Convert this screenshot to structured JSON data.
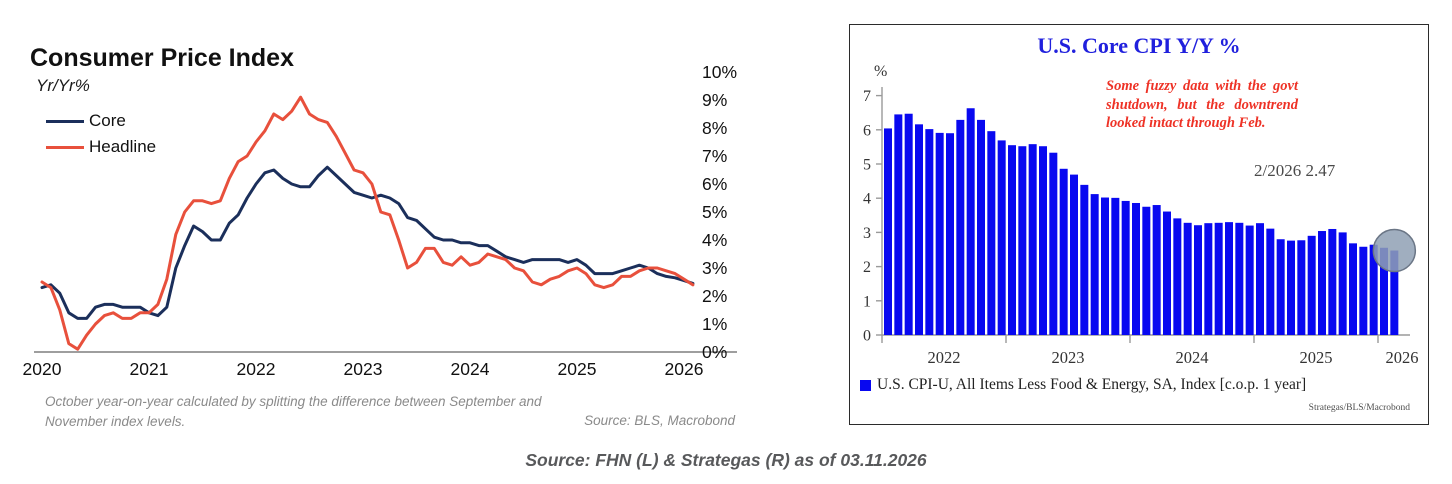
{
  "page": {
    "caption": "Source: FHN (L) & Strategas (R) as of 03.11.2026"
  },
  "left_chart": {
    "title": "Consumer Price Index",
    "subtitle": "Yr/Yr%",
    "legend": [
      {
        "label": "Core",
        "color": "#1b2f5b"
      },
      {
        "label": "Headline",
        "color": "#e8503c"
      }
    ],
    "footnote": "October year-on-year calculated by splitting the difference between September and November index levels.",
    "source": "Source: BLS, Macrobond"
  },
  "right_chart": {
    "title": "U.S. Core CPI Y/Y %",
    "title_color": "#2020dd",
    "unit_label": "%",
    "annotation": "Some fuzzy data with the govt shutdown, but the downtrend looked intact through Feb.",
    "annotation_color": "#ee3226",
    "point_label": "2/2026 2.47",
    "legend": "U.S. CPI-U, All Items Less Food & Energy, SA, Index [c.o.p. 1 year]",
    "credit": "Strategas/BLS/Macrobond"
  },
  "chart_data": [
    {
      "type": "line",
      "title": "Consumer Price Index",
      "ylabel": "Yr/Yr%",
      "x_start": "2020-01",
      "x_end": "2026-02",
      "x_tick_labels": [
        "2020",
        "2021",
        "2022",
        "2023",
        "2024",
        "2025",
        "2026"
      ],
      "y_tick_labels": [
        "0%",
        "1%",
        "2%",
        "3%",
        "4%",
        "5%",
        "6%",
        "7%",
        "8%",
        "9%",
        "10%"
      ],
      "ylim": [
        0,
        10
      ],
      "grid": false,
      "legend_position": "top-left",
      "series": [
        {
          "name": "Core",
          "color": "#1b2f5b",
          "values": [
            2.3,
            2.4,
            2.1,
            1.4,
            1.2,
            1.2,
            1.6,
            1.7,
            1.7,
            1.6,
            1.6,
            1.6,
            1.4,
            1.3,
            1.6,
            3.0,
            3.8,
            4.5,
            4.3,
            4.0,
            4.0,
            4.6,
            4.9,
            5.5,
            6.0,
            6.4,
            6.5,
            6.2,
            6.0,
            5.9,
            5.9,
            6.3,
            6.6,
            6.3,
            6.0,
            5.7,
            5.6,
            5.5,
            5.6,
            5.5,
            5.3,
            4.8,
            4.7,
            4.4,
            4.1,
            4.0,
            4.0,
            3.9,
            3.9,
            3.8,
            3.8,
            3.6,
            3.4,
            3.3,
            3.2,
            3.3,
            3.3,
            3.3,
            3.3,
            3.2,
            3.3,
            3.1,
            2.8,
            2.8,
            2.8,
            2.9,
            3.0,
            3.1,
            3.0,
            2.8,
            2.7,
            2.65,
            2.55,
            2.45
          ]
        },
        {
          "name": "Headline",
          "color": "#e8503c",
          "values": [
            2.5,
            2.3,
            1.5,
            0.3,
            0.1,
            0.6,
            1.0,
            1.3,
            1.4,
            1.2,
            1.2,
            1.4,
            1.4,
            1.7,
            2.6,
            4.2,
            5.0,
            5.4,
            5.4,
            5.3,
            5.4,
            6.2,
            6.8,
            7.0,
            7.5,
            7.9,
            8.5,
            8.3,
            8.6,
            9.1,
            8.5,
            8.3,
            8.2,
            7.7,
            7.1,
            6.5,
            6.4,
            6.0,
            5.0,
            4.9,
            4.0,
            3.0,
            3.2,
            3.7,
            3.7,
            3.2,
            3.1,
            3.4,
            3.1,
            3.2,
            3.5,
            3.4,
            3.3,
            3.0,
            2.9,
            2.5,
            2.4,
            2.6,
            2.7,
            2.9,
            3.0,
            2.8,
            2.4,
            2.3,
            2.4,
            2.7,
            2.7,
            2.9,
            3.0,
            3.0,
            2.9,
            2.8,
            2.6,
            2.4
          ]
        }
      ]
    },
    {
      "type": "bar",
      "title": "U.S. Core CPI Y/Y %",
      "series_name": "U.S. CPI-U, All Items Less Food & Energy, SA, Index [c.o.p. 1 year]",
      "x_start": "2022-01",
      "x_end": "2026-02",
      "x_tick_labels": [
        "2022",
        "2023",
        "2024",
        "2025",
        "2026"
      ],
      "y_ticks": [
        0,
        1,
        2,
        3,
        4,
        5,
        6,
        7
      ],
      "ylim": [
        0,
        7
      ],
      "bar_color": "#0808f0",
      "values": [
        6.04,
        6.45,
        6.47,
        6.16,
        6.02,
        5.91,
        5.9,
        6.29,
        6.63,
        6.29,
        5.96,
        5.69,
        5.55,
        5.52,
        5.58,
        5.52,
        5.33,
        4.86,
        4.69,
        4.39,
        4.12,
        4.02,
        4.01,
        3.92,
        3.86,
        3.75,
        3.8,
        3.61,
        3.41,
        3.28,
        3.21,
        3.27,
        3.28,
        3.3,
        3.28,
        3.2,
        3.27,
        3.11,
        2.8,
        2.76,
        2.77,
        2.9,
        3.04,
        3.1,
        3.0,
        2.68,
        2.58,
        2.64,
        2.55,
        2.47
      ],
      "last_point": {
        "label": "2/2026 2.47",
        "value": 2.47,
        "marker": "gray-circle",
        "marker_color": "#8fa0b4"
      }
    }
  ]
}
